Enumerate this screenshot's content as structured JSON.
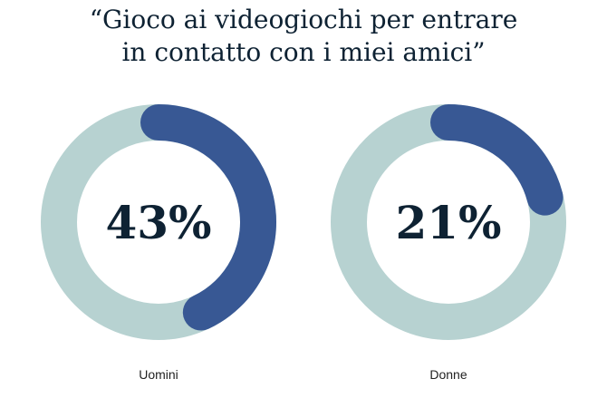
{
  "chart_data": {
    "type": "donut",
    "title_line1": "“Gioco ai videogiochi per entrare",
    "title_line2": "in contatto con i miei amici”",
    "categories": [
      "Uomini",
      "Donne"
    ],
    "values": [
      43,
      21
    ],
    "value_labels": [
      "43%",
      "21%"
    ],
    "colors": {
      "value": "#385894",
      "remainder": "#b7d2d1",
      "text": "#0e2233"
    }
  }
}
